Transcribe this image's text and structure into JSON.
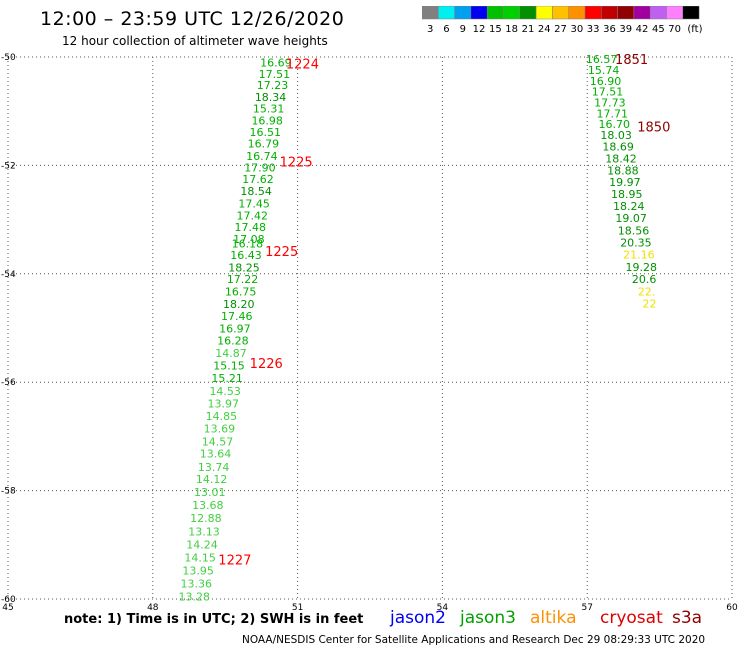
{
  "header": {
    "title": "12:00 – 23:59 UTC 12/26/2020",
    "subtitle": "12 hour collection of altimeter wave heights"
  },
  "colorbar": {
    "colors": [
      "#808080",
      "#00f0f0",
      "#00a0f0",
      "#0000f0",
      "#00c000",
      "#00d000",
      "#009000",
      "#ffff00",
      "#ffc000",
      "#ff9000",
      "#ff0000",
      "#c00000",
      "#900000",
      "#a000a0",
      "#c060f0",
      "#ff80ff",
      "#000000"
    ],
    "labels": [
      "3",
      "6",
      "9",
      "12",
      "15",
      "18",
      "21",
      "24",
      "27",
      "30",
      "33",
      "36",
      "39",
      "42",
      "45",
      "70",
      "(ft)"
    ]
  },
  "footer": {
    "note": "note:  1) Time is in UTC;  2) SWH is in feet",
    "satellites": [
      {
        "name": "jason2",
        "color": "#0000f0"
      },
      {
        "name": "jason3",
        "color": "#00a000"
      },
      {
        "name": "altika",
        "color": "#ff9000"
      },
      {
        "name": "cryosat",
        "color": "#e00000"
      },
      {
        "name": "s3a",
        "color": "#900000"
      }
    ],
    "credit": "NOAA/NESDIS Center for Satellite Applications and Research    Dec 29 08:29:33 UTC 2020"
  },
  "chart_data": {
    "type": "scatter",
    "xlim": [
      45,
      60
    ],
    "ylim": [
      -60,
      -50
    ],
    "x_ticks": [
      "45",
      "48",
      "51",
      "54",
      "57",
      "60"
    ],
    "y_ticks": [
      "-50",
      "-52",
      "-54",
      "-56",
      "-58",
      "-60"
    ],
    "grid": true,
    "series": [
      {
        "track": "west",
        "points": [
          {
            "lon": 50.55,
            "lat": -50.1,
            "v": "16.69"
          },
          {
            "lon": 50.52,
            "lat": -50.31,
            "v": "17.51"
          },
          {
            "lon": 50.48,
            "lat": -50.52,
            "v": "17.23"
          },
          {
            "lon": 50.44,
            "lat": -50.74,
            "v": "18.34"
          },
          {
            "lon": 50.4,
            "lat": -50.95,
            "v": "15.31"
          },
          {
            "lon": 50.37,
            "lat": -51.17,
            "v": "16.98"
          },
          {
            "lon": 50.33,
            "lat": -51.38,
            "v": "16.51"
          },
          {
            "lon": 50.29,
            "lat": -51.6,
            "v": "16.79"
          },
          {
            "lon": 50.26,
            "lat": -51.83,
            "v": "16.74"
          },
          {
            "lon": 50.22,
            "lat": -52.04,
            "v": "17.90"
          },
          {
            "lon": 50.18,
            "lat": -52.25,
            "v": "17.62"
          },
          {
            "lon": 50.14,
            "lat": -52.47,
            "v": "18.54"
          },
          {
            "lon": 50.1,
            "lat": -52.7,
            "v": "17.45"
          },
          {
            "lon": 50.06,
            "lat": -52.92,
            "v": "17.42"
          },
          {
            "lon": 50.02,
            "lat": -53.14,
            "v": "17.48"
          },
          {
            "lon": 49.99,
            "lat": -53.36,
            "v": "17.08"
          },
          {
            "lon": 49.96,
            "lat": -53.44,
            "v": "16.18"
          },
          {
            "lon": 49.93,
            "lat": -53.65,
            "v": "16.43"
          },
          {
            "lon": 49.89,
            "lat": -53.88,
            "v": "18.25"
          },
          {
            "lon": 49.86,
            "lat": -54.1,
            "v": "17.22"
          },
          {
            "lon": 49.82,
            "lat": -54.33,
            "v": "16.75"
          },
          {
            "lon": 49.78,
            "lat": -54.56,
            "v": "18.20"
          },
          {
            "lon": 49.74,
            "lat": -54.78,
            "v": "17.46"
          },
          {
            "lon": 49.7,
            "lat": -55.01,
            "v": "16.97"
          },
          {
            "lon": 49.66,
            "lat": -55.23,
            "v": "16.28"
          },
          {
            "lon": 49.62,
            "lat": -55.46,
            "v": "14.87"
          },
          {
            "lon": 49.58,
            "lat": -55.69,
            "v": "15.15"
          },
          {
            "lon": 49.54,
            "lat": -55.92,
            "v": "15.21"
          },
          {
            "lon": 49.5,
            "lat": -56.16,
            "v": "14.53"
          },
          {
            "lon": 49.46,
            "lat": -56.39,
            "v": "13.97"
          },
          {
            "lon": 49.42,
            "lat": -56.62,
            "v": "14.85"
          },
          {
            "lon": 49.38,
            "lat": -56.85,
            "v": "13.69"
          },
          {
            "lon": 49.34,
            "lat": -57.09,
            "v": "14.57"
          },
          {
            "lon": 49.3,
            "lat": -57.32,
            "v": "13.64"
          },
          {
            "lon": 49.26,
            "lat": -57.56,
            "v": "13.74"
          },
          {
            "lon": 49.22,
            "lat": -57.79,
            "v": "14.12"
          },
          {
            "lon": 49.18,
            "lat": -58.03,
            "v": "13.01"
          },
          {
            "lon": 49.14,
            "lat": -58.27,
            "v": "13.68"
          },
          {
            "lon": 49.1,
            "lat": -58.51,
            "v": "12.88"
          },
          {
            "lon": 49.06,
            "lat": -58.75,
            "v": "13.13"
          },
          {
            "lon": 49.02,
            "lat": -58.99,
            "v": "14.24"
          },
          {
            "lon": 48.98,
            "lat": -59.23,
            "v": "14.15"
          },
          {
            "lon": 48.94,
            "lat": -59.47,
            "v": "13.95"
          },
          {
            "lon": 48.9,
            "lat": -59.71,
            "v": "13.36"
          },
          {
            "lon": 48.86,
            "lat": -59.95,
            "v": "13.28"
          }
        ]
      },
      {
        "track": "east",
        "points": [
          {
            "lon": 57.3,
            "lat": -50.04,
            "v": "16.57"
          },
          {
            "lon": 57.34,
            "lat": -50.24,
            "v": "15.74"
          },
          {
            "lon": 57.38,
            "lat": -50.44,
            "v": "16.90"
          },
          {
            "lon": 57.42,
            "lat": -50.64,
            "v": "17.51"
          },
          {
            "lon": 57.47,
            "lat": -50.84,
            "v": "17.73"
          },
          {
            "lon": 57.52,
            "lat": -51.04,
            "v": "17.71"
          },
          {
            "lon": 57.56,
            "lat": -51.24,
            "v": "16.70"
          },
          {
            "lon": 57.6,
            "lat": -51.44,
            "v": "18.03"
          },
          {
            "lon": 57.64,
            "lat": -51.65,
            "v": "18.69"
          },
          {
            "lon": 57.7,
            "lat": -51.87,
            "v": "18.42"
          },
          {
            "lon": 57.74,
            "lat": -52.09,
            "v": "18.88"
          },
          {
            "lon": 57.78,
            "lat": -52.31,
            "v": "19.97"
          },
          {
            "lon": 57.82,
            "lat": -52.53,
            "v": "18.95"
          },
          {
            "lon": 57.86,
            "lat": -52.75,
            "v": "18.24"
          },
          {
            "lon": 57.91,
            "lat": -52.97,
            "v": "19.07"
          },
          {
            "lon": 57.96,
            "lat": -53.2,
            "v": "18.56"
          },
          {
            "lon": 58.01,
            "lat": -53.42,
            "v": "20.35"
          },
          {
            "lon": 58.07,
            "lat": -53.64,
            "v": "21.16"
          },
          {
            "lon": 58.12,
            "lat": -53.87,
            "v": "19.28"
          },
          {
            "lon": 58.18,
            "lat": -54.1,
            "v": "20.6"
          },
          {
            "lon": 58.23,
            "lat": -54.33,
            "v": "22."
          },
          {
            "lon": 58.29,
            "lat": -54.55,
            "v": "22"
          }
        ]
      }
    ],
    "time_labels": [
      {
        "text": "1224",
        "lon": 51.1,
        "lat": -50.12,
        "color": "#ff0000"
      },
      {
        "text": "1225",
        "lon": 50.97,
        "lat": -51.93,
        "color": "#ff0000"
      },
      {
        "text": "1225",
        "lon": 50.67,
        "lat": -53.58,
        "color": "#ff0000"
      },
      {
        "text": "1226",
        "lon": 50.35,
        "lat": -55.65,
        "color": "#ff0000"
      },
      {
        "text": "1227",
        "lon": 49.7,
        "lat": -59.27,
        "color": "#ff0000"
      },
      {
        "text": "1851",
        "lon": 57.92,
        "lat": -50.04,
        "color": "#900000"
      },
      {
        "text": "1850",
        "lon": 58.38,
        "lat": -51.28,
        "color": "#900000"
      }
    ]
  }
}
